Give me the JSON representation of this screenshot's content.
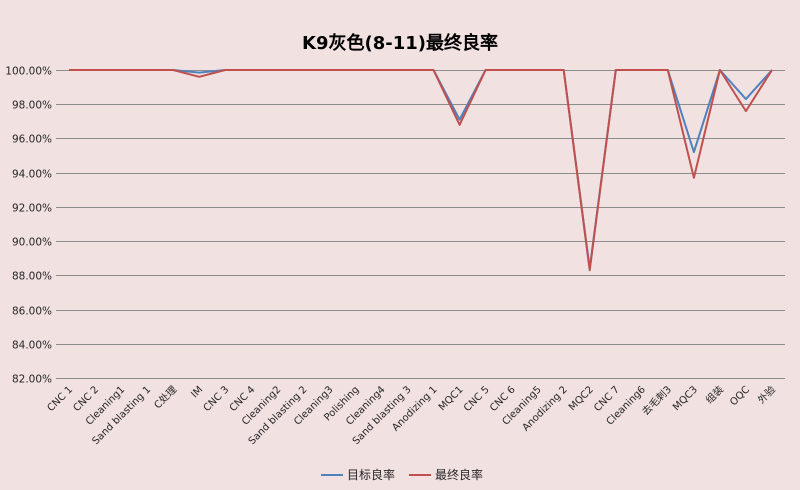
{
  "chart_data": {
    "type": "line",
    "title": "K9灰色(8-11)最终良率",
    "xlabel": "",
    "ylabel": "",
    "ylim": [
      0.82,
      1.0
    ],
    "y_ticks": [
      "100.00%",
      "98.00%",
      "96.00%",
      "94.00%",
      "92.00%",
      "90.00%",
      "88.00%",
      "86.00%",
      "84.00%",
      "82.00%"
    ],
    "grid": true,
    "legend_position": "bottom",
    "categories": [
      "CNC 1",
      "CNC 2",
      "Cleaning1",
      "Sand blasting 1",
      "C处理",
      "IM",
      "CNC 3",
      "CNC 4",
      "Cleaning2",
      "Sand blasting 2",
      "Cleaning3",
      "Polishing",
      "Cleaning4",
      "Sand blasting 3",
      "Anodizing 1",
      "MQC1",
      "CNC 5",
      "CNC 6",
      "Cleaning5",
      "Anodizing 2",
      "MQC2",
      "CNC 7",
      "Cleaning6",
      "去毛刺3",
      "MQC3",
      "组装",
      "OQC",
      "外验"
    ],
    "series": [
      {
        "name": "目标良率",
        "color": "#4f81bd",
        "values": [
          1.0,
          1.0,
          1.0,
          1.0,
          1.0,
          0.9985,
          1.0,
          1.0,
          1.0,
          1.0,
          1.0,
          1.0,
          1.0,
          1.0,
          1.0,
          0.971,
          1.0,
          1.0,
          1.0,
          1.0,
          0.884,
          1.0,
          1.0,
          1.0,
          0.952,
          1.0,
          0.983,
          1.0
        ]
      },
      {
        "name": "最终良率",
        "color": "#c0504d",
        "values": [
          1.0,
          1.0,
          1.0,
          1.0,
          1.0,
          0.996,
          1.0,
          1.0,
          1.0,
          1.0,
          1.0,
          1.0,
          1.0,
          1.0,
          1.0,
          0.968,
          1.0,
          1.0,
          1.0,
          1.0,
          0.883,
          1.0,
          1.0,
          1.0,
          0.937,
          1.0,
          0.976,
          1.0
        ]
      }
    ]
  }
}
